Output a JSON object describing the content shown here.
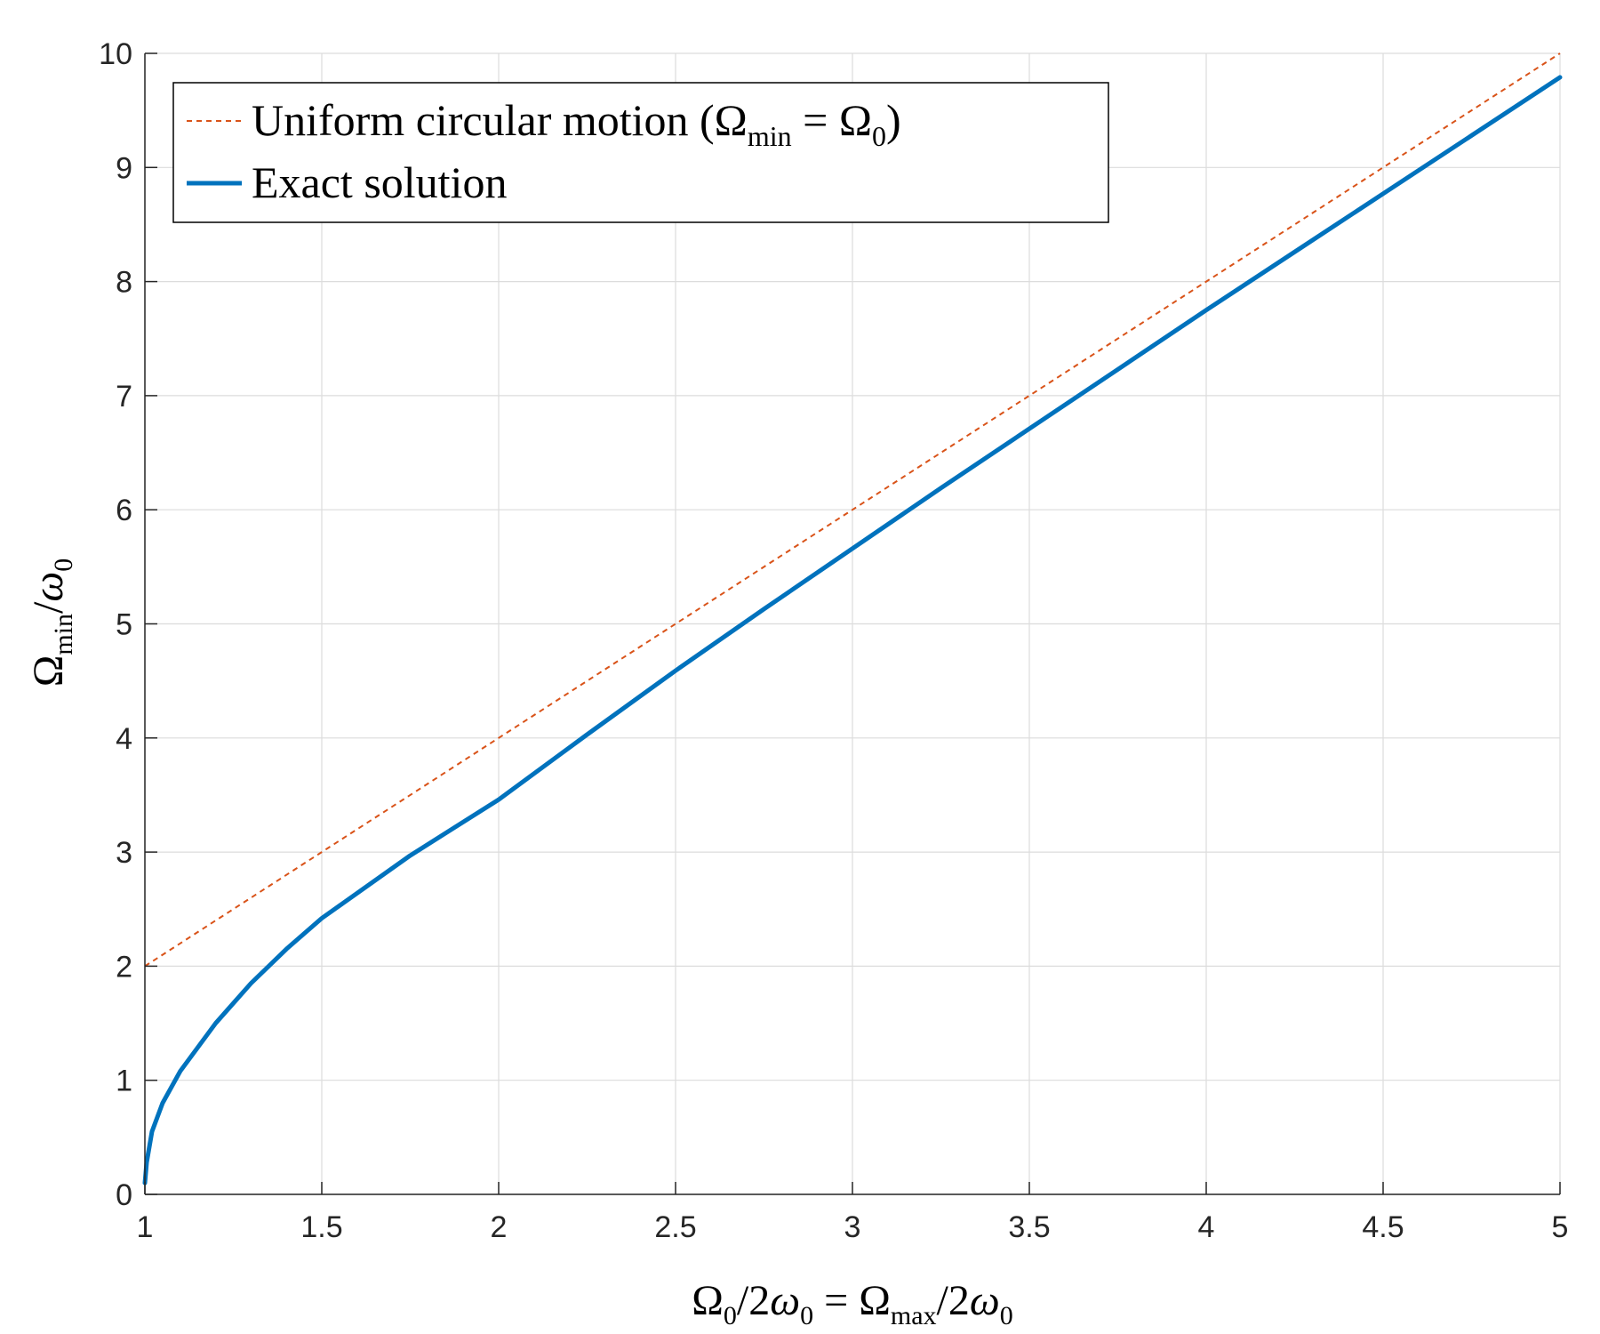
{
  "chart_data": {
    "type": "line",
    "xlabel": "Ω0/2ω0 = Ωmax/2ω0",
    "ylabel": "Ωmin/ω0",
    "xlim": [
      1,
      5
    ],
    "ylim": [
      0,
      10
    ],
    "x_ticks": [
      "1",
      "1.5",
      "2",
      "2.5",
      "3",
      "3.5",
      "4",
      "4.5",
      "5"
    ],
    "y_ticks": [
      "0",
      "1",
      "2",
      "3",
      "4",
      "5",
      "6",
      "7",
      "8",
      "9",
      "10"
    ],
    "grid": true,
    "legend_position": "top-left",
    "series": [
      {
        "name": "Uniform circular motion (Ωmin = Ω0)",
        "style": "dashed",
        "color": "#D95319",
        "x": [
          1,
          1.5,
          2,
          2.5,
          3,
          3.5,
          4,
          4.5,
          5
        ],
        "y": [
          2,
          3,
          4,
          5,
          6,
          7,
          8,
          9,
          10
        ]
      },
      {
        "name": "Exact solution",
        "style": "solid",
        "color": "#0072BD",
        "x": [
          1,
          1.005,
          1.02,
          1.05,
          1.1,
          1.2,
          1.3,
          1.4,
          1.5,
          1.75,
          2,
          2.25,
          2.5,
          2.75,
          3,
          3.25,
          3.5,
          3.75,
          4,
          4.25,
          4.5,
          4.75,
          5
        ],
        "y": [
          0.1,
          0.28,
          0.55,
          0.8,
          1.08,
          1.5,
          1.85,
          2.15,
          2.42,
          2.97,
          3.46,
          4.03,
          4.59,
          5.13,
          5.66,
          6.19,
          6.71,
          7.23,
          7.75,
          8.26,
          8.77,
          9.28,
          9.79
        ]
      }
    ]
  }
}
